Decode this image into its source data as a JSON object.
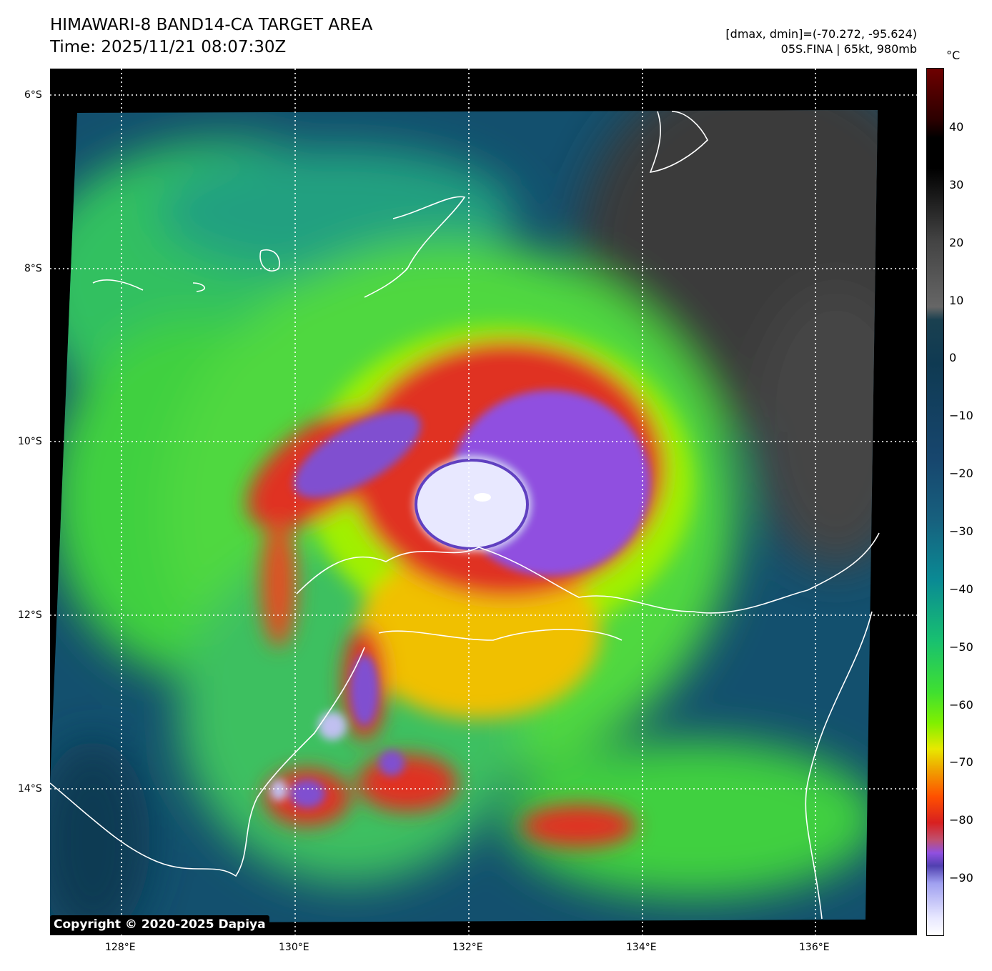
{
  "header": {
    "title": "HIMAWARI-8 BAND14-CA TARGET AREA",
    "time": "Time: 2025/11/21 08:07:30Z",
    "dminmax": "[dmax, dmin]=(-70.272, -95.624)",
    "storm": "05S.FINA | 65kt, 980mb"
  },
  "map": {
    "lat_labels": [
      "6°S",
      "8°S",
      "10°S",
      "12°S",
      "14°S"
    ],
    "lon_labels": [
      "128°E",
      "130°E",
      "132°E",
      "134°E",
      "136°E"
    ],
    "copyright": "Copyright © 2020-2025 Dapiya"
  },
  "colorbar": {
    "unit": "°C",
    "ticks": [
      "40",
      "30",
      "20",
      "10",
      "0",
      "−10",
      "−20",
      "−30",
      "−40",
      "−50",
      "−60",
      "−70",
      "−80",
      "−90"
    ],
    "range": [
      -100,
      49
    ]
  }
}
